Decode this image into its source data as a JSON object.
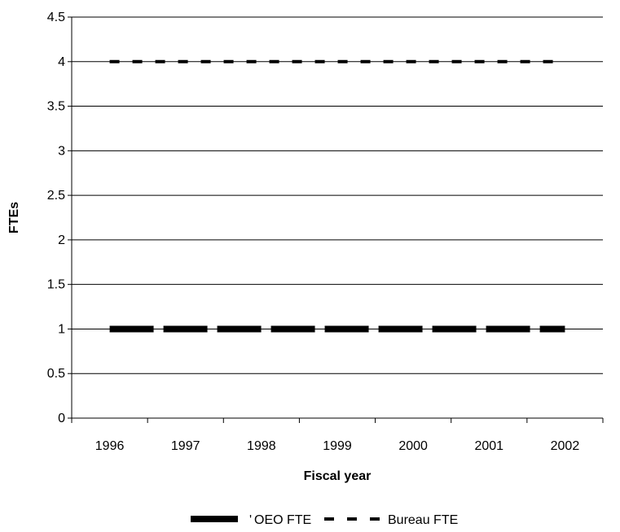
{
  "chart_data": {
    "type": "line",
    "categories": [
      "1996",
      "1997",
      "1998",
      "1999",
      "2000",
      "2001",
      "2002"
    ],
    "series": [
      {
        "name": "OEO FTE",
        "values": [
          1,
          1,
          1,
          1,
          1,
          1,
          1
        ],
        "color": "#000000",
        "style": "long-dash-thick"
      },
      {
        "name": "Bureau FTE",
        "values": [
          4,
          4,
          4,
          4,
          4,
          4,
          4
        ],
        "color": "#000000",
        "style": "short-dash"
      }
    ],
    "xlabel": "Fiscal year",
    "ylabel": "FTEs",
    "ylim": [
      0,
      4.5
    ],
    "yticks": [
      "0",
      "0.5",
      "1",
      "1.5",
      "2",
      "2.5",
      "3",
      "3.5",
      "4",
      "4.5"
    ],
    "grid": true,
    "legend_position": "bottom",
    "legend_mark": "'"
  }
}
